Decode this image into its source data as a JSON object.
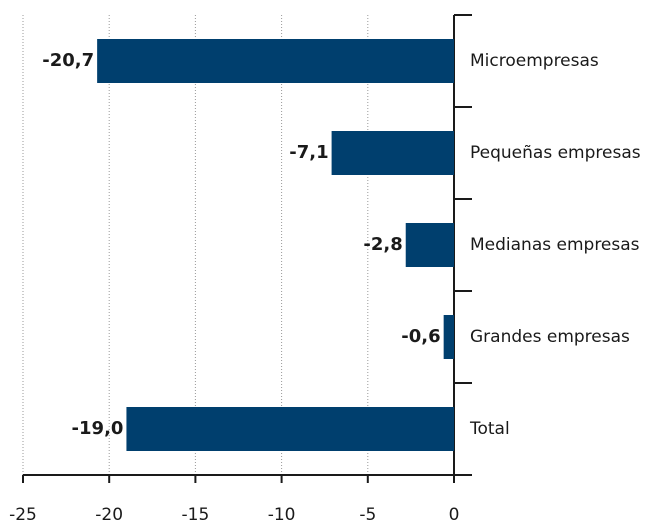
{
  "chart_data": {
    "type": "barh",
    "categories": [
      "Microempresas",
      "Pequeñas empresas",
      "Medianas empresas",
      "Grandes empresas",
      "Total"
    ],
    "values": [
      -20.7,
      -7.1,
      -2.8,
      -0.6,
      -19.0
    ],
    "value_labels": [
      "-20,7",
      "-7,1",
      "-2,8",
      "-0,6",
      "-19,0"
    ],
    "color": "#003f6e",
    "xlim": [
      -25,
      0
    ],
    "xticks": [
      -25,
      -20,
      -15,
      -10,
      -5,
      0
    ],
    "grid": true
  }
}
